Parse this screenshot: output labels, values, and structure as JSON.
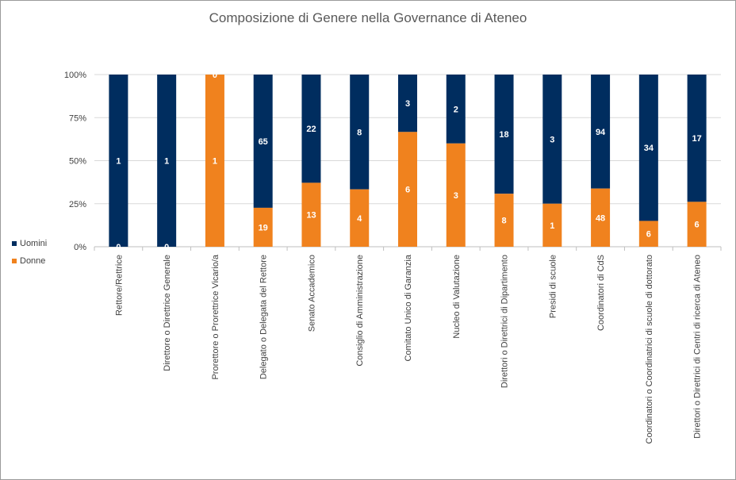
{
  "chart_data": {
    "type": "bar",
    "stacked": "percent",
    "title": "Composizione di Genere nella Governance di Ateneo",
    "xlabel": "",
    "ylabel": "",
    "ylim": [
      0,
      100
    ],
    "yticks": [
      "0%",
      "25%",
      "50%",
      "75%",
      "100%"
    ],
    "grid": true,
    "legend_position": "left",
    "categories": [
      "Rettore/Rettrice",
      "Direttore o Direttrice Generale",
      "Prorettore o Prorettrice Vicario/a",
      "Delegato o Delegata del Rettore",
      "Senato Accademico",
      "Consiglio di Amministrazione",
      "Comitato Unico di Garanzia",
      "Nucleo di Valutazione",
      "Direttori o Direttrici di Dipartimento",
      "Presidi di scuole",
      "Coordinatori di CdS",
      "Coordinatori o Coordinatrici di scuole di dottorato",
      "Direttori o Direttrici di Centri di ricerca di Ateneo"
    ],
    "series": [
      {
        "name": "Donne",
        "color": "#F0821E",
        "values": [
          0,
          0,
          1,
          19,
          13,
          4,
          6,
          3,
          8,
          1,
          48,
          6,
          6
        ]
      },
      {
        "name": "Uomini",
        "color": "#002D5F",
        "values": [
          1,
          1,
          0,
          65,
          22,
          8,
          3,
          2,
          18,
          3,
          94,
          34,
          17
        ]
      }
    ],
    "legend": [
      "Uomini",
      "Donne"
    ]
  }
}
